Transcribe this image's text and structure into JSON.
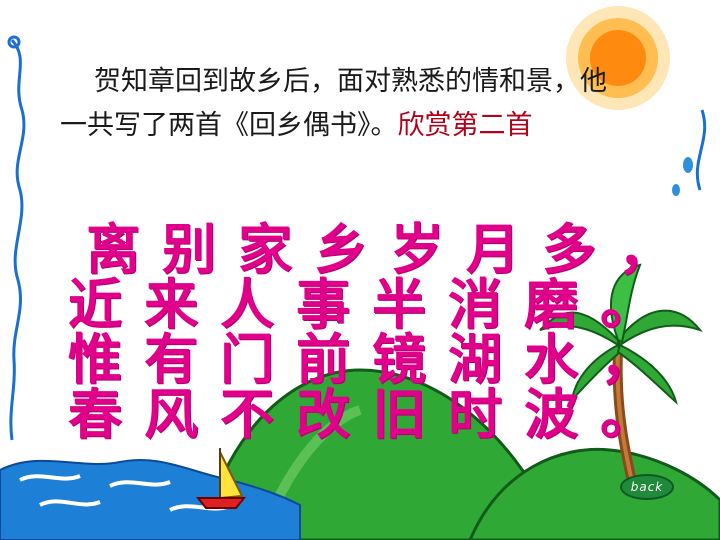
{
  "intro": {
    "line1": "贺知章回到故乡后，面对熟悉的情和景，他",
    "line2_plain": "一共写了两首《回乡偶书》。",
    "line2_highlight": "欣赏第二首"
  },
  "poem": {
    "verses": [
      "离别家乡岁月多，",
      "近来人事半消磨。",
      "惟有门前镜湖水，",
      "春风不改旧时波。"
    ]
  },
  "back_button": {
    "label": "back"
  },
  "colors": {
    "poem": "#e0008a",
    "highlight": "#b3001b",
    "hill": "#2fa836",
    "water": "#1e7fd6",
    "sun": "#ff9a1a"
  }
}
